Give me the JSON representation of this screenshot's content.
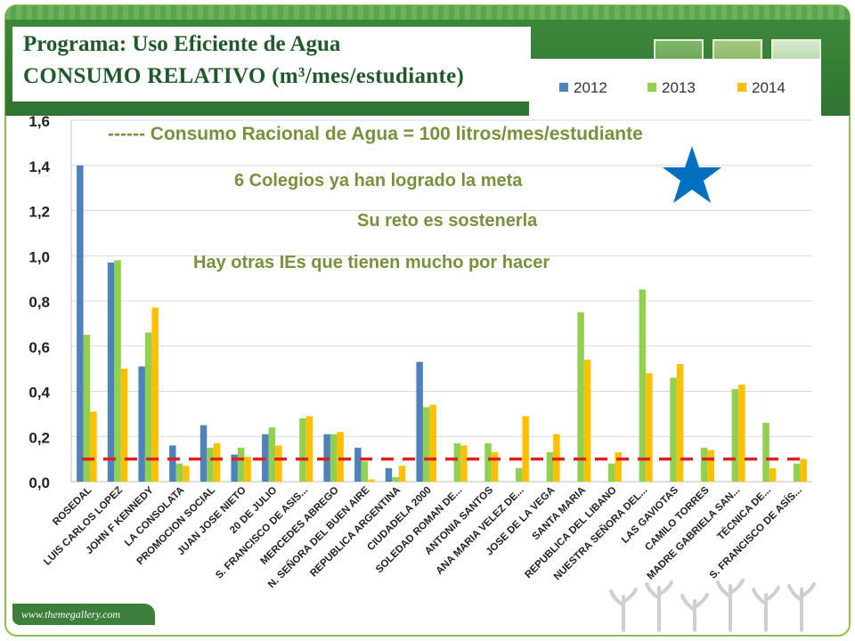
{
  "slide": {
    "title_line1": "Programa:   Uso Eficiente de Agua",
    "title_line2": "CONSUMO RELATIVO (m³/mes/estudiante)",
    "footer_url": "www.themegallery.com",
    "annotations": {
      "reference_line": "------ Consumo Racional de Agua = 100 litros/mes/estudiante",
      "goal_met": "6 Colegios ya han logrado la meta",
      "challenge": "Su reto es sostenerla",
      "others": "Hay otras IEs que tienen mucho por hacer"
    },
    "star_icon": "star-icon",
    "colors": {
      "banner": "#3f8a3c",
      "title_text": "#215a2a",
      "annotation_text": "#76923c",
      "star": "#0070c0",
      "reference_line": "#e02020"
    }
  },
  "chart_data": {
    "type": "bar",
    "title": "",
    "xlabel": "",
    "ylabel": "",
    "ylim": [
      0,
      1.6
    ],
    "yticks": [
      "0,0",
      "0,2",
      "0,4",
      "0,6",
      "0,8",
      "1,0",
      "1,2",
      "1,4",
      "1,6"
    ],
    "grid": true,
    "legend_position": "top-right",
    "reference_value": 0.1,
    "categories": [
      "ROSEDAL",
      "LUIS CARLOS LOPEZ",
      "JOHN F KENNEDY",
      "LA CONSOLATA",
      "PROMOCION SOCIAL",
      "JUAN JOSE NIETO",
      "20 DE JULIO",
      "S. FRANCISCO DE ASIS...",
      "MERCEDES ABREGO",
      "N. SEÑORA DEL BUEN AIRE",
      "REPUBLICA ARGENTINA",
      "CIUDADELA 2000",
      "SOLEDAD ROMAN DE...",
      "ANTONIA SANTOS",
      "ANA MARIA VELEZ DE...",
      "JOSE DE LA VEGA",
      "SANTA MARIA",
      "REPUBLICA DEL LIBANO",
      "NUESTRA SEÑORA DEL...",
      "LAS GAVIOTAS",
      "CAMILO TORRES",
      "MADRE GABRIELA SAN...",
      "TÉCNICA DE...",
      "S. FRANCISCO DE ASÍS..."
    ],
    "series": [
      {
        "name": "2012",
        "color": "#4f81bd",
        "values": [
          1.4,
          0.97,
          0.51,
          0.16,
          0.25,
          0.12,
          0.21,
          null,
          0.21,
          0.15,
          0.06,
          0.53,
          null,
          null,
          null,
          null,
          null,
          null,
          null,
          null,
          null,
          null,
          null,
          null
        ]
      },
      {
        "name": "2013",
        "color": "#92d050",
        "values": [
          0.65,
          0.98,
          0.66,
          0.08,
          0.15,
          0.15,
          0.24,
          0.28,
          0.21,
          0.09,
          0.02,
          0.33,
          0.17,
          0.17,
          0.06,
          0.13,
          0.75,
          0.08,
          0.85,
          0.46,
          0.15,
          0.41,
          0.26,
          0.08
        ]
      },
      {
        "name": "2014",
        "color": "#ffc000",
        "values": [
          0.31,
          0.5,
          0.77,
          0.07,
          0.17,
          0.11,
          0.16,
          0.29,
          0.22,
          0.01,
          0.07,
          0.34,
          0.16,
          0.13,
          0.29,
          0.21,
          0.54,
          0.13,
          0.48,
          0.52,
          0.14,
          0.43,
          0.06,
          0.1
        ]
      }
    ]
  }
}
